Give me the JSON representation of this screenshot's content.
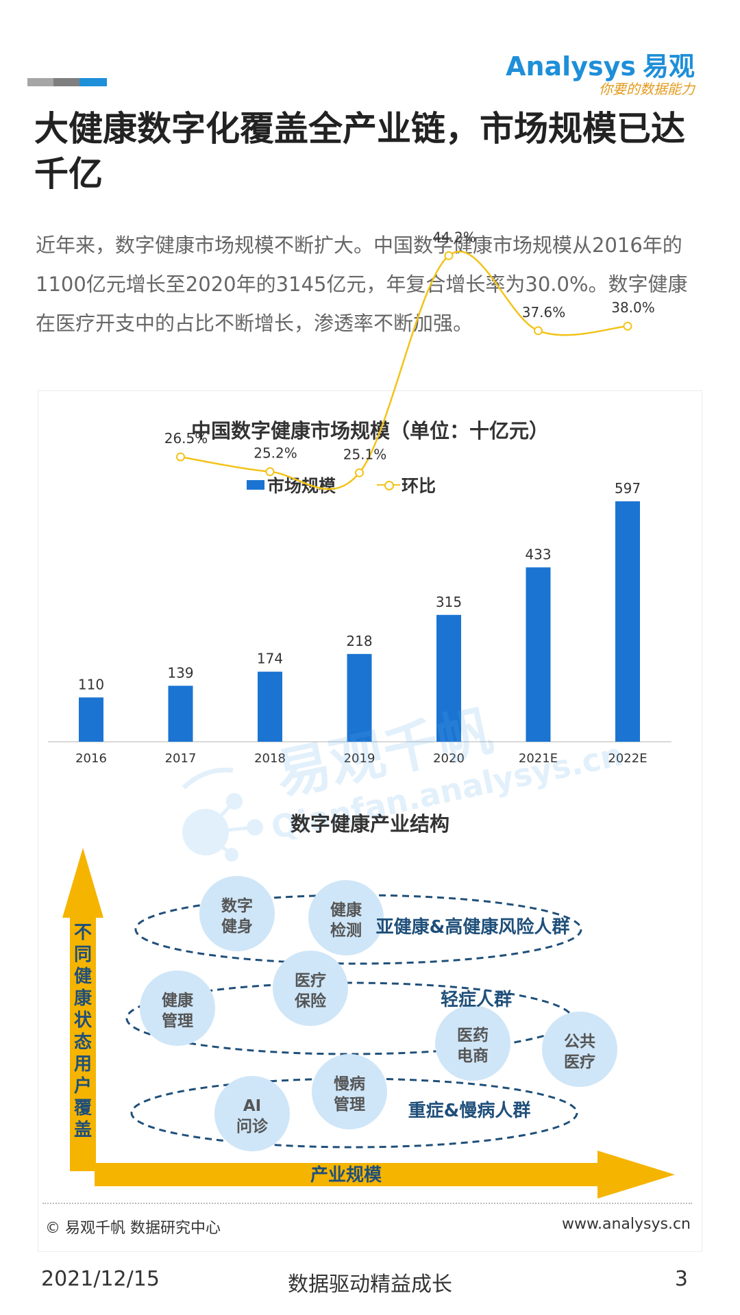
{
  "header": {
    "logo_en": "Analysys",
    "logo_cn": "易观",
    "logo_tagline": "你要的数据能力",
    "bar_colors": [
      "#a6a6a6",
      "#7f7f7f",
      "#1e8fd9"
    ]
  },
  "title": "大健康数字化覆盖全产业链，市场规模已达千亿",
  "intro": "近年来，数字健康市场规模不断扩大。中国数字健康市场规模从2016年的1100亿元增长至2020年的3145亿元，年复合增长率为30.0%。数字健康在医疗开支中的占比不断增长，渗透率不断加强。",
  "chart_data": {
    "type": "bar",
    "title": "中国数字健康市场规模（单位：十亿元）",
    "categories": [
      "2016",
      "2017",
      "2018",
      "2019",
      "2020",
      "2021E",
      "2022E"
    ],
    "series": [
      {
        "name": "市场规模",
        "type": "bar",
        "values": [
          110,
          139,
          174,
          218,
          315,
          433,
          597
        ],
        "color": "#1b74d2"
      },
      {
        "name": "环比",
        "type": "line",
        "values": [
          null,
          26.5,
          25.2,
          25.1,
          44.2,
          37.6,
          38.0
        ],
        "labels": [
          null,
          "26.5%",
          "25.2%",
          "25.1%",
          "44.2%",
          "37.6%",
          "38.0%"
        ],
        "color": "#f2c318"
      }
    ],
    "legend_position": "top"
  },
  "watermark": {
    "text_cn": "易观千帆",
    "text_en": "Qianfan.analysys.cn"
  },
  "structure": {
    "title": "数字健康产业结构",
    "y_axis_label": "不同健康状态用户覆盖",
    "x_axis_label": "产业规模",
    "groups": [
      "亚健康&高健康风险人群",
      "轻症人群",
      "重症&慢病人群"
    ],
    "nodes": [
      {
        "line1": "数字",
        "line2": "健身"
      },
      {
        "line1": "健康",
        "line2": "检测"
      },
      {
        "line1": "医疗",
        "line2": "保险"
      },
      {
        "line1": "健康",
        "line2": "管理"
      },
      {
        "line1": "医药",
        "line2": "电商"
      },
      {
        "line1": "公共",
        "line2": "医疗"
      },
      {
        "line1": "慢病",
        "line2": "管理"
      },
      {
        "line1": "AI",
        "line2": "问诊"
      }
    ],
    "arrow_color": "#f5b400",
    "circle_color": "#cfe6f8",
    "group_color": "#1f4f7a"
  },
  "footer": {
    "copyright": "© 易观千帆 数据研究中心",
    "website": "www.analysys.cn",
    "date": "2021/12/15",
    "slogan": "数据驱动精益成长",
    "page": "3"
  }
}
